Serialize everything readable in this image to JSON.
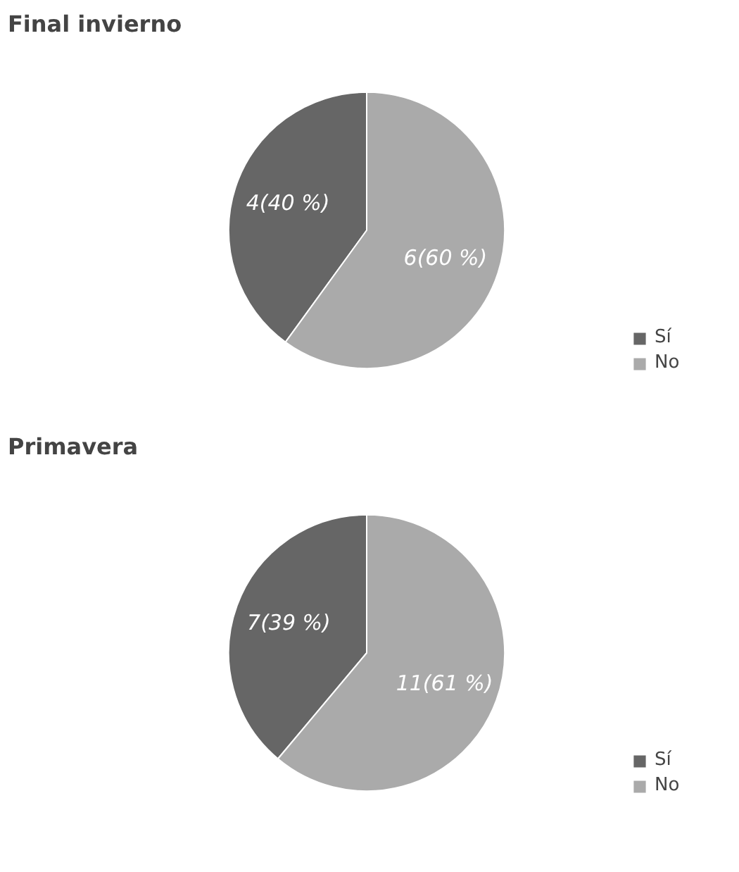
{
  "chart_data": [
    {
      "type": "pie",
      "title": "Final invierno",
      "categories": [
        "Sí",
        "No"
      ],
      "values": [
        4,
        6
      ],
      "colors": [
        "#666666",
        "#aaaaaa"
      ],
      "value_labels": [
        "4(40 %)",
        "6(60 %)"
      ],
      "legend": "bottom right"
    },
    {
      "type": "pie",
      "title": "Primavera",
      "categories": [
        "Sí",
        "No"
      ],
      "values": [
        7,
        11
      ],
      "colors": [
        "#666666",
        "#aaaaaa"
      ],
      "value_labels": [
        "7(39 %)",
        "11(61 %)"
      ],
      "legend": "bottom right"
    }
  ]
}
